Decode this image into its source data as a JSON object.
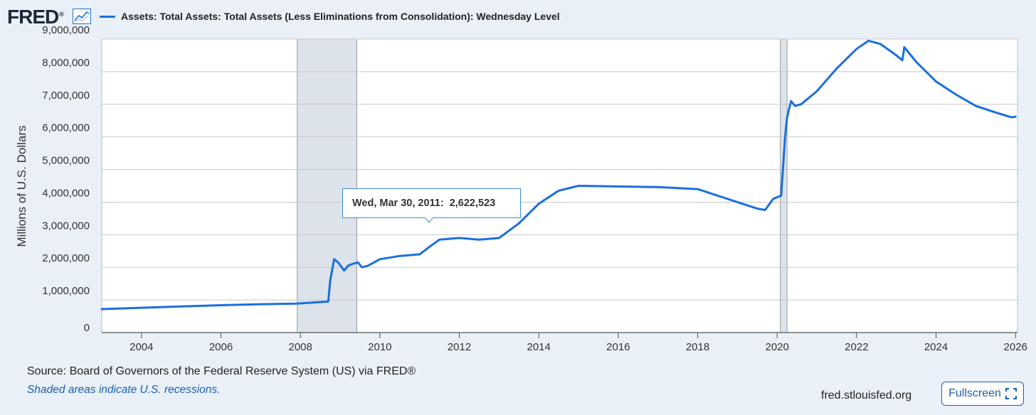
{
  "logo": {
    "text": "FRED",
    "reg": "®",
    "icon": "line-graph-icon"
  },
  "legend": {
    "label": "Assets: Total Assets: Total Assets (Less Eliminations from Consolidation): Wednesday Level",
    "color": "#1a6fde"
  },
  "tooltip": {
    "date": "Wed, Mar 30, 2011:",
    "value": "2,622,523"
  },
  "footer": {
    "source": "Source: Board of Governors of the Federal Reserve System (US) via FRED®",
    "note": "Shaded areas indicate U.S. recessions.",
    "site": "fred.stlouisfed.org",
    "fullscreen_label": "Fullscreen",
    "fullscreen_icon": "expand-icon"
  },
  "colors": {
    "line": "#1a6fde",
    "recession": "#dde3ea",
    "grid": "#c8c8c8",
    "background": "#e9f0f7"
  },
  "chart_data": {
    "type": "line",
    "title": "Assets: Total Assets: Total Assets (Less Eliminations from Consolidation): Wednesday Level",
    "xlabel": "",
    "ylabel": "Millions of U.S. Dollars",
    "xlim": [
      2003,
      2026.05
    ],
    "ylim": [
      0,
      9000000
    ],
    "yticks": [
      0,
      1000000,
      2000000,
      3000000,
      4000000,
      5000000,
      6000000,
      7000000,
      8000000,
      9000000
    ],
    "ytick_labels": [
      "0",
      "1,000,000",
      "2,000,000",
      "3,000,000",
      "4,000,000",
      "5,000,000",
      "6,000,000",
      "7,000,000",
      "8,000,000",
      "9,000,000"
    ],
    "xticks": [
      2004,
      2006,
      2008,
      2010,
      2012,
      2014,
      2016,
      2018,
      2020,
      2022,
      2024,
      2026
    ],
    "xtick_labels": [
      "2004",
      "2006",
      "2008",
      "2010",
      "2012",
      "2014",
      "2016",
      "2018",
      "2020",
      "2022",
      "2024",
      "2026"
    ],
    "grid": true,
    "recessions": [
      [
        2007.92,
        2009.42
      ],
      [
        2020.08,
        2020.25
      ]
    ],
    "series": [
      {
        "name": "Assets: Total Assets: Total Assets (Less Eliminations from Consolidation): Wednesday Level",
        "x": [
          2003.0,
          2004.0,
          2005.0,
          2006.0,
          2007.0,
          2007.9,
          2008.7,
          2008.75,
          2008.85,
          2008.95,
          2009.1,
          2009.2,
          2009.3,
          2009.45,
          2009.55,
          2009.7,
          2010.0,
          2010.5,
          2011.0,
          2011.24,
          2011.5,
          2012.0,
          2012.5,
          2013.0,
          2013.5,
          2014.0,
          2014.5,
          2015.0,
          2016.0,
          2017.0,
          2018.0,
          2018.5,
          2019.0,
          2019.5,
          2019.7,
          2019.9,
          2020.1,
          2020.2,
          2020.25,
          2020.35,
          2020.45,
          2020.6,
          2021.0,
          2021.5,
          2022.0,
          2022.3,
          2022.6,
          2023.0,
          2023.15,
          2023.2,
          2023.5,
          2024.0,
          2024.5,
          2025.0,
          2025.5,
          2025.9,
          2026.0
        ],
        "values": [
          720000,
          760000,
          800000,
          840000,
          870000,
          890000,
          950000,
          1600000,
          2250000,
          2150000,
          1900000,
          2050000,
          2100000,
          2150000,
          2000000,
          2050000,
          2250000,
          2350000,
          2400000,
          2622523,
          2850000,
          2900000,
          2850000,
          2900000,
          3350000,
          3950000,
          4350000,
          4500000,
          4480000,
          4460000,
          4400000,
          4200000,
          4000000,
          3800000,
          3760000,
          4100000,
          4200000,
          6000000,
          6600000,
          7100000,
          6950000,
          7000000,
          7400000,
          8100000,
          8700000,
          8950000,
          8850000,
          8500000,
          8350000,
          8750000,
          8300000,
          7700000,
          7300000,
          6950000,
          6750000,
          6600000,
          6620000
        ]
      }
    ]
  }
}
